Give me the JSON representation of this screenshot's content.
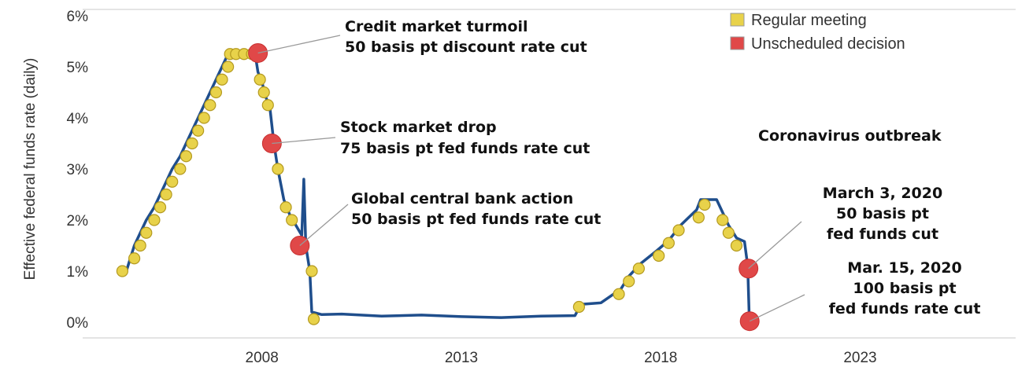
{
  "chart_data": {
    "type": "line",
    "title": "",
    "xlabel": "",
    "ylabel": "Effective federal funds rate (daily)",
    "x_ticks": [
      "2008",
      "2013",
      "2018",
      "2023"
    ],
    "y_ticks": [
      "0%",
      "1%",
      "2%",
      "3%",
      "4%",
      "5%",
      "6%"
    ],
    "xlim": [
      2003.9,
      2026.8
    ],
    "ylim": [
      0,
      6
    ],
    "grid": false,
    "legend_position": "top-right",
    "series": [
      {
        "name": "",
        "color": "#1f4e8c",
        "points": [
          [
            2004.4,
            1.0
          ],
          [
            2004.6,
            1.0
          ],
          [
            2004.7,
            1.25
          ],
          [
            2004.8,
            1.5
          ],
          [
            2004.95,
            1.75
          ],
          [
            2005.1,
            2.0
          ],
          [
            2005.3,
            2.25
          ],
          [
            2005.45,
            2.5
          ],
          [
            2005.6,
            2.75
          ],
          [
            2005.75,
            3.0
          ],
          [
            2005.95,
            3.25
          ],
          [
            2006.1,
            3.5
          ],
          [
            2006.25,
            3.75
          ],
          [
            2006.4,
            4.0
          ],
          [
            2006.55,
            4.25
          ],
          [
            2006.7,
            4.5
          ],
          [
            2006.85,
            4.75
          ],
          [
            2007.0,
            5.0
          ],
          [
            2007.15,
            5.25
          ],
          [
            2007.3,
            5.25
          ],
          [
            2007.5,
            5.25
          ],
          [
            2007.7,
            5.27
          ],
          [
            2007.83,
            5.25
          ],
          [
            2007.9,
            4.9
          ],
          [
            2008.0,
            4.7
          ],
          [
            2008.1,
            4.4
          ],
          [
            2008.2,
            4.2
          ],
          [
            2008.3,
            3.5
          ],
          [
            2008.4,
            3.0
          ],
          [
            2008.55,
            2.4
          ],
          [
            2008.7,
            2.1
          ],
          [
            2008.85,
            1.9
          ],
          [
            2009.0,
            1.7
          ],
          [
            2009.05,
            2.8
          ],
          [
            2009.1,
            1.5
          ],
          [
            2009.2,
            1.0
          ],
          [
            2009.25,
            0.2
          ],
          [
            2009.5,
            0.15
          ],
          [
            2010.0,
            0.16
          ],
          [
            2011.0,
            0.12
          ],
          [
            2012.0,
            0.14
          ],
          [
            2013.0,
            0.11
          ],
          [
            2014.0,
            0.09
          ],
          [
            2015.0,
            0.12
          ],
          [
            2015.85,
            0.13
          ],
          [
            2016.0,
            0.35
          ],
          [
            2016.5,
            0.38
          ],
          [
            2017.0,
            0.65
          ],
          [
            2017.2,
            0.9
          ],
          [
            2017.5,
            1.15
          ],
          [
            2017.9,
            1.4
          ],
          [
            2018.2,
            1.6
          ],
          [
            2018.5,
            1.9
          ],
          [
            2018.9,
            2.2
          ],
          [
            2019.0,
            2.4
          ],
          [
            2019.4,
            2.4
          ],
          [
            2019.55,
            2.15
          ],
          [
            2019.7,
            1.9
          ],
          [
            2019.9,
            1.65
          ],
          [
            2020.1,
            1.58
          ],
          [
            2020.18,
            1.1
          ],
          [
            2020.22,
            0.06
          ],
          [
            2020.3,
            0.05
          ]
        ]
      }
    ],
    "markers": {
      "regular": [
        [
          2004.5,
          1.0
        ],
        [
          2004.8,
          1.25
        ],
        [
          2004.95,
          1.5
        ],
        [
          2005.1,
          1.75
        ],
        [
          2005.3,
          2.0
        ],
        [
          2005.45,
          2.25
        ],
        [
          2005.6,
          2.5
        ],
        [
          2005.75,
          2.75
        ],
        [
          2005.95,
          3.0
        ],
        [
          2006.1,
          3.25
        ],
        [
          2006.25,
          3.5
        ],
        [
          2006.4,
          3.75
        ],
        [
          2006.55,
          4.0
        ],
        [
          2006.7,
          4.25
        ],
        [
          2006.85,
          4.5
        ],
        [
          2007.0,
          4.75
        ],
        [
          2007.15,
          5.0
        ],
        [
          2007.2,
          5.25
        ],
        [
          2007.35,
          5.25
        ],
        [
          2007.55,
          5.25
        ],
        [
          2007.75,
          5.25
        ],
        [
          2007.95,
          4.75
        ],
        [
          2008.05,
          4.5
        ],
        [
          2008.15,
          4.25
        ],
        [
          2008.4,
          3.0
        ],
        [
          2008.6,
          2.25
        ],
        [
          2008.75,
          2.0
        ],
        [
          2009.25,
          1.0
        ],
        [
          2009.3,
          0.06
        ],
        [
          2015.95,
          0.3
        ],
        [
          2016.95,
          0.55
        ],
        [
          2017.2,
          0.8
        ],
        [
          2017.45,
          1.05
        ],
        [
          2017.95,
          1.3
        ],
        [
          2018.2,
          1.55
        ],
        [
          2018.45,
          1.8
        ],
        [
          2018.95,
          2.05
        ],
        [
          2019.1,
          2.3
        ],
        [
          2019.55,
          2.0
        ],
        [
          2019.7,
          1.75
        ],
        [
          2019.9,
          1.5
        ]
      ],
      "unscheduled": [
        [
          2007.9,
          5.27
        ],
        [
          2008.25,
          3.5
        ],
        [
          2008.95,
          1.5
        ],
        [
          2020.2,
          1.05
        ],
        [
          2020.23,
          0.02
        ]
      ]
    },
    "legend": [
      {
        "label": "Regular meeting",
        "color": "#e8d24a"
      },
      {
        "label": "Unscheduled decision",
        "color": "#e04848"
      }
    ],
    "annotations": [
      {
        "lines": [
          "Credit market turmoil",
          "50 basis pt discount rate cut"
        ]
      },
      {
        "lines": [
          "Stock market drop",
          "75 basis pt fed funds rate cut"
        ]
      },
      {
        "lines": [
          "Global central bank action",
          "50 basis pt fed funds rate cut"
        ]
      },
      {
        "lines": [
          "Coronavirus outbreak"
        ]
      },
      {
        "lines": [
          "March 3, 2020",
          "50 basis pt",
          "fed funds cut"
        ]
      },
      {
        "lines": [
          "Mar. 15, 2020",
          "100 basis pt",
          "fed funds rate cut"
        ]
      }
    ]
  }
}
